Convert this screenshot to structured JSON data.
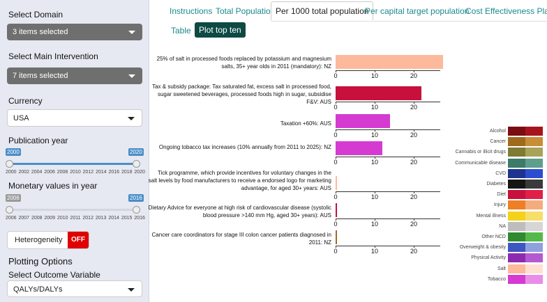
{
  "sidebar": {
    "domain_label": "Select Domain",
    "domain_value": "3 items selected",
    "intervention_label": "Select Main Intervention",
    "intervention_value": "7 items selected",
    "currency_label": "Currency",
    "currency_value": "USA",
    "pubyear_label": "Publication year",
    "pubyear_min": "2000",
    "pubyear_max": "2020",
    "pubyear_ticks": [
      "2000",
      "2002",
      "2004",
      "2006",
      "2008",
      "2010",
      "2012",
      "2014",
      "2016",
      "2018",
      "2020"
    ],
    "monetary_label": "Monetary values in year",
    "monetary_min": "2006",
    "monetary_max": "2016",
    "monetary_ticks": [
      "2006",
      "2007",
      "2008",
      "2009",
      "2010",
      "2011",
      "2012",
      "2013",
      "2014",
      "2015",
      "2016"
    ],
    "heterogeneity_label": "Heterogeneity",
    "heterogeneity_state": "OFF",
    "plotting_title": "Plotting Options",
    "outcome_label": "Select Outcome Variable",
    "outcome_value": "QALYs/DALYs"
  },
  "tabs": [
    "Instructions",
    "Total Population",
    "Per 1000 total population",
    "Per capital target population",
    "Cost Effectiveness Plane"
  ],
  "active_tab": "Per 1000 total population",
  "subtabs": [
    "Table",
    "Plot top ten"
  ],
  "active_subtab": "Plot top ten",
  "chart_data": {
    "type": "bar",
    "orientation": "horizontal",
    "xlim": [
      0,
      27
    ],
    "xticks": [
      "0",
      "10",
      "20"
    ],
    "items": [
      {
        "label": "25% of salt in processed foods replaced by potassium and magnesium salts, 35+ year olds in 2011 (mandatory): NZ",
        "value": 27.5,
        "color": "#fcb99b",
        "category": "Salt"
      },
      {
        "label": "Tax & subsidy package: Tax saturated fat, excess salt in processed food, sugar sweetened beverages, processed foods high in sugar, subsidise F&V: AUS",
        "value": 22,
        "color": "#c8103d",
        "category": "Diet"
      },
      {
        "label": "Taxation +60%: AUS",
        "value": 14,
        "color": "#d53bd1",
        "category": "Tobacco"
      },
      {
        "label": "Ongoing tobacco tax increases (10% annually from 2011 to 2025): NZ",
        "value": 12,
        "color": "#d53bd1",
        "category": "Tobacco"
      },
      {
        "label": "Tick programme, which provide incentives for voluntary changes in the salt levels by food manufacturers to receive a endorsed logo for marketing advantage, for aged 30+ years: AUS",
        "value": 0.3,
        "color": "#fcb99b",
        "category": "Salt"
      },
      {
        "label": "Dietary Advice for everyone at high risk of cardiovascular disease (systolic blood pressure >140 mm Hg, aged 30+ years): AUS",
        "value": 0.3,
        "color": "#c8103d",
        "category": "Diet"
      },
      {
        "label": "Cancer care coordinators for stage III colon cancer patients diagnosed in 2011: NZ",
        "value": 0.2,
        "color": "#a06a28",
        "category": "Cancer"
      }
    ],
    "legend": [
      {
        "name": "Alcohol",
        "c1": "#7a0e13",
        "c2": "#a8141b"
      },
      {
        "name": "Cancer",
        "c1": "#a06a1e",
        "c2": "#c78e36"
      },
      {
        "name": "Cannabis or illicit drugs",
        "c1": "#7f7a34",
        "c2": "#a9a259"
      },
      {
        "name": "Communicable disease",
        "c1": "#3d7a6a",
        "c2": "#5e9e8c"
      },
      {
        "name": "CVD",
        "c1": "#1c3390",
        "c2": "#2b4ed0"
      },
      {
        "name": "Diabetes",
        "c1": "#151515",
        "c2": "#3a3a3a"
      },
      {
        "name": "Diet",
        "c1": "#c8103d",
        "c2": "#e02049"
      },
      {
        "name": "Injury",
        "c1": "#ee7f25",
        "c2": "#f4ac7c"
      },
      {
        "name": "Mental illness",
        "c1": "#f4d21a",
        "c2": "#f6de6a"
      },
      {
        "name": "NA",
        "c1": "#bdbdbd",
        "c2": "#d6d6d6"
      },
      {
        "name": "Other NCD",
        "c1": "#2f8a2f",
        "c2": "#55b84a"
      },
      {
        "name": "Overweight & obesity",
        "c1": "#3e56c0",
        "c2": "#8ea0e0"
      },
      {
        "name": "Physical Activity",
        "c1": "#8e2ab0",
        "c2": "#b45ad0"
      },
      {
        "name": "Salt",
        "c1": "#fcb99b",
        "c2": "#fde0d2"
      },
      {
        "name": "Tobacco",
        "c1": "#d53bd1",
        "c2": "#ea8de8"
      }
    ]
  }
}
